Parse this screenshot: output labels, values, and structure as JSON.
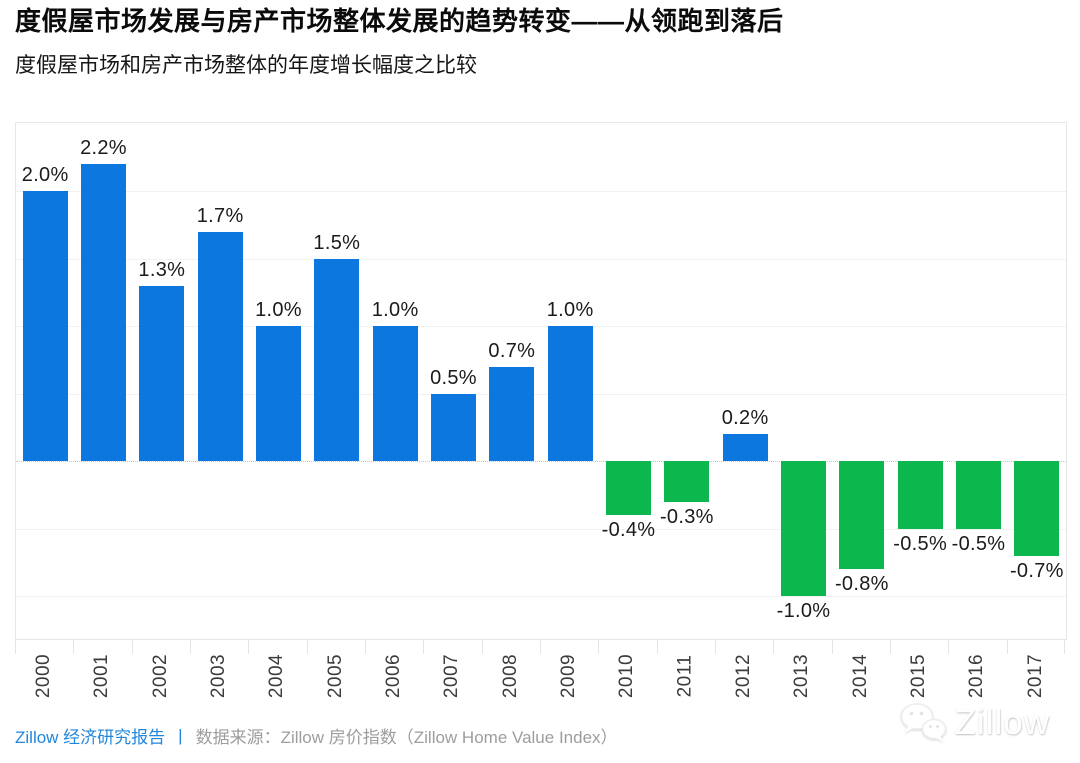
{
  "header": {
    "title": "度假屋市场发展与房产市场整体发展的趋势转变——从领跑到落后",
    "subtitle": "度假屋市场和房产市场整体的年度增长幅度之比较"
  },
  "chart_data": {
    "type": "bar",
    "title": "度假屋市场和房产市场整体的年度增长幅度之比较",
    "xlabel": "",
    "ylabel": "",
    "categories": [
      "2000",
      "2001",
      "2002",
      "2003",
      "2004",
      "2005",
      "2006",
      "2007",
      "2008",
      "2009",
      "2010",
      "2011",
      "2012",
      "2013",
      "2014",
      "2015",
      "2016",
      "2017"
    ],
    "values": [
      2.0,
      2.2,
      1.3,
      1.7,
      1.0,
      1.5,
      1.0,
      0.5,
      0.7,
      1.0,
      -0.4,
      -0.3,
      0.2,
      -1.0,
      -0.8,
      -0.5,
      -0.5,
      -0.7
    ],
    "labels": [
      "2.0%",
      "2.2%",
      "1.3%",
      "1.7%",
      "1.0%",
      "1.5%",
      "1.0%",
      "0.5%",
      "0.7%",
      "1.0%",
      "-0.4%",
      "-0.3%",
      "0.2%",
      "-1.0%",
      "-0.8%",
      "-0.5%",
      "-0.5%",
      "-0.7%"
    ],
    "unit": "%",
    "ylim": [
      -1.32,
      2.5
    ],
    "gridlines": [
      2.0,
      1.5,
      1.0,
      0.5,
      -0.5,
      -1.0
    ],
    "zero_line": 0,
    "grid": true,
    "legend": false,
    "positive_color": "#0d77e0",
    "negative_color": "#0cb84e"
  },
  "footer": {
    "brand": "Zillow 经济研究报告",
    "separator": "|",
    "source": "数据来源：Zillow 房价指数（Zillow Home Value Index）"
  },
  "watermark": {
    "icon": "wechat-icon",
    "text": "Zillow"
  },
  "colors": {
    "background": "#ffffff",
    "grid": "#f1f1f1",
    "frame": "#e7e7e7",
    "value_label": "#1b1b1b",
    "year_label": "#3c3c3c",
    "footer_brand": "#2286dd",
    "footer_source": "#9d9d9d"
  }
}
